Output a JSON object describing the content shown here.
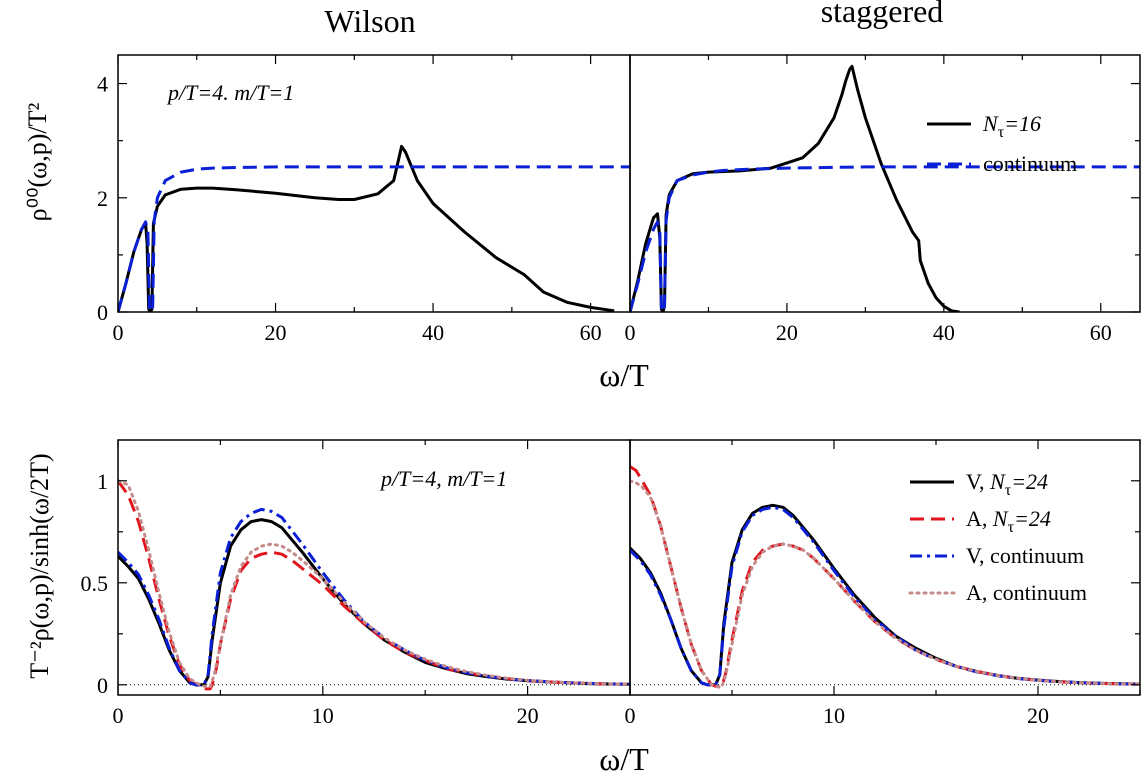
{
  "titles": {
    "left": "Wilson",
    "right": "staggered"
  },
  "chart_data": [
    {
      "type": "line",
      "panel": "top-left",
      "title": "Wilson",
      "xlabel": "ω/T",
      "ylabel": "ρ⁰⁰(ω,p)/T²",
      "xlim": [
        0,
        65
      ],
      "ylim": [
        0,
        4.5
      ],
      "xticks": [
        0,
        20,
        40,
        60
      ],
      "yticks": [
        0,
        2,
        4
      ],
      "annotation": "p/T=4. m/T=1",
      "series": [
        {
          "name": "N_τ=16",
          "color": "#000000",
          "dash": "solid",
          "x": [
            0,
            1,
            2,
            3,
            3.5,
            3.7,
            3.9,
            4.1,
            4.3,
            4.5,
            5,
            6,
            8,
            10,
            12,
            15,
            20,
            25,
            28,
            30,
            33,
            35,
            36,
            36.5,
            38,
            40,
            44,
            48,
            51,
            51.5,
            52,
            54,
            57,
            60,
            62,
            63
          ],
          "y": [
            0,
            0.5,
            1.05,
            1.45,
            1.55,
            1.2,
            0.05,
            0.0,
            0.05,
            1.55,
            1.85,
            2.05,
            2.15,
            2.17,
            2.17,
            2.14,
            2.08,
            2.0,
            1.97,
            1.97,
            2.07,
            2.3,
            2.9,
            2.8,
            2.3,
            1.9,
            1.4,
            0.95,
            0.7,
            0.66,
            0.6,
            0.35,
            0.17,
            0.08,
            0.04,
            0.02
          ]
        },
        {
          "name": "continuum",
          "color": "#0a1fd6",
          "dash": "dashed",
          "x": [
            0,
            1,
            2,
            3,
            3.5,
            3.8,
            4.0,
            4.2,
            4.4,
            4.6,
            5,
            6,
            8,
            10,
            12,
            15,
            20,
            30,
            40,
            50,
            65
          ],
          "y": [
            0,
            0.5,
            1.05,
            1.45,
            1.58,
            1.4,
            0.05,
            0.0,
            0.1,
            1.6,
            2.0,
            2.3,
            2.45,
            2.5,
            2.52,
            2.53,
            2.54,
            2.54,
            2.54,
            2.54,
            2.54
          ]
        }
      ]
    },
    {
      "type": "line",
      "panel": "top-right",
      "title": "staggered",
      "xlabel": "ω/T",
      "xlim": [
        0,
        65
      ],
      "ylim": [
        0,
        4.5
      ],
      "xticks": [
        0,
        20,
        40,
        60
      ],
      "legend": "top-right",
      "series": [
        {
          "name": "N_τ=16",
          "color": "#000000",
          "dash": "solid",
          "x": [
            0,
            1,
            2,
            3,
            3.5,
            3.8,
            4.0,
            4.2,
            4.4,
            4.6,
            5,
            6,
            8,
            10,
            14,
            18,
            22,
            24,
            26,
            27,
            27.5,
            28,
            28.3,
            29,
            30,
            32,
            34,
            36,
            36.8,
            37,
            38,
            39,
            40,
            41,
            42
          ],
          "y": [
            0,
            0.55,
            1.2,
            1.65,
            1.72,
            1.3,
            0.05,
            0.0,
            0.1,
            1.7,
            2.05,
            2.3,
            2.42,
            2.45,
            2.47,
            2.52,
            2.7,
            2.95,
            3.4,
            3.8,
            4.05,
            4.25,
            4.3,
            3.9,
            3.4,
            2.6,
            1.95,
            1.4,
            1.25,
            0.9,
            0.5,
            0.25,
            0.1,
            0.02,
            0
          ]
        },
        {
          "name": "continuum",
          "color": "#0a1fd6",
          "dash": "dashed",
          "x": [
            0,
            1,
            2,
            3,
            3.5,
            3.8,
            4.0,
            4.2,
            4.4,
            4.6,
            5,
            6,
            8,
            10,
            12,
            15,
            20,
            30,
            40,
            50,
            65
          ],
          "y": [
            0,
            0.5,
            1.05,
            1.45,
            1.58,
            1.4,
            0.05,
            0.0,
            0.1,
            1.6,
            2.0,
            2.3,
            2.4,
            2.45,
            2.48,
            2.5,
            2.52,
            2.54,
            2.54,
            2.54,
            2.54
          ]
        }
      ]
    },
    {
      "type": "line",
      "panel": "bottom-left",
      "xlabel": "ω/T",
      "ylabel": "T⁻²ρ(ω,p)/sinh(ω/2T)",
      "xlim": [
        0,
        25
      ],
      "ylim": [
        -0.05,
        1.2
      ],
      "xticks": [
        0,
        10,
        20
      ],
      "yticks": [
        0,
        0.5,
        1
      ],
      "annotation": "p/T=4, m/T=1",
      "zero_line": true,
      "series": [
        {
          "name": "V, N_τ=24",
          "color": "#000000",
          "dash": "solid",
          "x": [
            0,
            0.5,
            1,
            1.5,
            2,
            2.5,
            3,
            3.5,
            3.8,
            4.0,
            4.2,
            4.4,
            4.6,
            5,
            5.5,
            6,
            6.5,
            7,
            7.5,
            8,
            9,
            10,
            11,
            12,
            13,
            14,
            15,
            16,
            17,
            18,
            19,
            20,
            21,
            22,
            23,
            24,
            25
          ],
          "y": [
            0.63,
            0.58,
            0.52,
            0.42,
            0.3,
            0.17,
            0.07,
            0.01,
            0.0,
            0.0,
            0.0,
            0.04,
            0.22,
            0.5,
            0.68,
            0.76,
            0.8,
            0.81,
            0.8,
            0.77,
            0.65,
            0.52,
            0.4,
            0.3,
            0.22,
            0.16,
            0.11,
            0.08,
            0.055,
            0.04,
            0.028,
            0.02,
            0.014,
            0.01,
            0.006,
            0.004,
            0.003
          ]
        },
        {
          "name": "A, N_τ=24",
          "color": "#e0151d",
          "dash": "dashed",
          "x": [
            0,
            0.5,
            1,
            1.5,
            2,
            2.5,
            3,
            3.5,
            4,
            4.3,
            4.5,
            4.6,
            4.8,
            5,
            5.5,
            6,
            6.5,
            7,
            7.5,
            8,
            8.5,
            9,
            10,
            11,
            12,
            13,
            14,
            15,
            16,
            17,
            18,
            19,
            20,
            21,
            22,
            23,
            24,
            25
          ],
          "y": [
            1.0,
            0.93,
            0.8,
            0.62,
            0.42,
            0.24,
            0.1,
            0.02,
            -0.01,
            -0.02,
            -0.02,
            0.0,
            0.08,
            0.2,
            0.42,
            0.56,
            0.62,
            0.64,
            0.65,
            0.64,
            0.61,
            0.57,
            0.49,
            0.39,
            0.3,
            0.22,
            0.16,
            0.12,
            0.08,
            0.06,
            0.043,
            0.03,
            0.02,
            0.014,
            0.01,
            0.007,
            0.004,
            0.003
          ]
        },
        {
          "name": "V, continuum",
          "color": "#0a1fd6",
          "dash": "dashdot",
          "x": [
            0,
            0.5,
            1,
            1.5,
            2,
            2.5,
            3,
            3.5,
            3.8,
            4.0,
            4.2,
            4.4,
            4.6,
            5,
            5.5,
            6,
            6.5,
            7,
            7.5,
            8,
            9,
            10,
            11,
            12,
            13,
            14,
            15,
            16,
            17,
            18,
            19,
            20,
            21,
            22,
            23,
            24,
            25
          ],
          "y": [
            0.65,
            0.6,
            0.54,
            0.44,
            0.32,
            0.18,
            0.07,
            0.01,
            0.0,
            0.0,
            0.0,
            0.05,
            0.25,
            0.55,
            0.72,
            0.8,
            0.84,
            0.86,
            0.85,
            0.82,
            0.69,
            0.55,
            0.42,
            0.31,
            0.23,
            0.17,
            0.12,
            0.085,
            0.06,
            0.042,
            0.03,
            0.021,
            0.015,
            0.01,
            0.007,
            0.005,
            0.003
          ]
        },
        {
          "name": "A, continuum",
          "color": "#c48a8a",
          "dash": "dotted",
          "x": [
            0,
            0.5,
            1,
            1.5,
            2,
            2.5,
            3,
            3.5,
            4,
            4.3,
            4.5,
            4.7,
            5,
            5.5,
            6,
            6.5,
            7,
            7.5,
            8,
            8.5,
            9,
            10,
            11,
            12,
            13,
            14,
            15,
            16,
            17,
            18,
            19,
            20,
            21,
            22,
            23,
            24,
            25
          ],
          "y": [
            1.0,
            0.98,
            0.85,
            0.66,
            0.45,
            0.26,
            0.11,
            0.03,
            0.0,
            -0.01,
            -0.01,
            0.05,
            0.2,
            0.44,
            0.58,
            0.65,
            0.68,
            0.69,
            0.68,
            0.65,
            0.61,
            0.52,
            0.41,
            0.31,
            0.23,
            0.17,
            0.125,
            0.09,
            0.065,
            0.046,
            0.032,
            0.022,
            0.015,
            0.01,
            0.007,
            0.005,
            0.003
          ]
        }
      ]
    },
    {
      "type": "line",
      "panel": "bottom-right",
      "xlabel": "ω/T",
      "xlim": [
        0,
        25
      ],
      "ylim": [
        -0.05,
        1.2
      ],
      "xticks": [
        0,
        10,
        20
      ],
      "legend": "top-right",
      "zero_line": true,
      "series": [
        {
          "name": "V, N_τ=24",
          "color": "#000000",
          "dash": "solid",
          "x": [
            0,
            0.5,
            1,
            1.5,
            2,
            2.5,
            3,
            3.5,
            3.8,
            4.0,
            4.2,
            4.4,
            4.6,
            5,
            5.5,
            6,
            6.5,
            7,
            7.5,
            8,
            9,
            10,
            11,
            12,
            13,
            14,
            15,
            16,
            17,
            18,
            19,
            20,
            21,
            22,
            23,
            24,
            25
          ],
          "y": [
            0.67,
            0.62,
            0.55,
            0.45,
            0.32,
            0.18,
            0.07,
            0.01,
            0.0,
            0.0,
            0.0,
            0.05,
            0.3,
            0.6,
            0.76,
            0.84,
            0.87,
            0.88,
            0.87,
            0.83,
            0.71,
            0.57,
            0.44,
            0.33,
            0.24,
            0.18,
            0.13,
            0.09,
            0.065,
            0.046,
            0.032,
            0.023,
            0.016,
            0.011,
            0.008,
            0.005,
            0.004
          ]
        },
        {
          "name": "A, N_τ=24",
          "color": "#e0151d",
          "dash": "dashed",
          "x": [
            0,
            0.3,
            0.6,
            1,
            1.5,
            2,
            2.5,
            3,
            3.5,
            4,
            4.3,
            4.5,
            4.7,
            5,
            5.5,
            6,
            6.5,
            7,
            7.5,
            8,
            8.5,
            9,
            10,
            11,
            12,
            13,
            14,
            15,
            16,
            17,
            18,
            19,
            20,
            21,
            22,
            23,
            24,
            25
          ],
          "y": [
            1.07,
            1.05,
            1.0,
            0.93,
            0.78,
            0.58,
            0.38,
            0.2,
            0.07,
            0.0,
            -0.01,
            -0.01,
            0.06,
            0.22,
            0.46,
            0.6,
            0.66,
            0.68,
            0.69,
            0.68,
            0.66,
            0.62,
            0.52,
            0.41,
            0.31,
            0.23,
            0.17,
            0.125,
            0.09,
            0.065,
            0.046,
            0.032,
            0.022,
            0.015,
            0.01,
            0.007,
            0.005,
            0.003
          ]
        },
        {
          "name": "V, continuum",
          "color": "#0a1fd6",
          "dash": "dashdot",
          "x": [
            0,
            0.5,
            1,
            1.5,
            2,
            2.5,
            3,
            3.5,
            3.8,
            4.0,
            4.2,
            4.4,
            4.6,
            5,
            5.5,
            6,
            6.5,
            7,
            7.5,
            8,
            9,
            10,
            11,
            12,
            13,
            14,
            15,
            16,
            17,
            18,
            19,
            20,
            21,
            22,
            23,
            24,
            25
          ],
          "y": [
            0.66,
            0.61,
            0.54,
            0.44,
            0.32,
            0.18,
            0.07,
            0.01,
            0.0,
            0.0,
            0.0,
            0.05,
            0.28,
            0.58,
            0.75,
            0.83,
            0.86,
            0.87,
            0.86,
            0.82,
            0.7,
            0.56,
            0.43,
            0.32,
            0.24,
            0.17,
            0.125,
            0.09,
            0.063,
            0.045,
            0.031,
            0.022,
            0.015,
            0.011,
            0.007,
            0.005,
            0.003
          ]
        },
        {
          "name": "A, continuum",
          "color": "#c48a8a",
          "dash": "dotted",
          "x": [
            0,
            0.3,
            0.6,
            1,
            1.5,
            2,
            2.5,
            3,
            3.5,
            4,
            4.3,
            4.5,
            4.7,
            5,
            5.5,
            6,
            6.5,
            7,
            7.5,
            8,
            8.5,
            9,
            10,
            11,
            12,
            13,
            14,
            15,
            16,
            17,
            18,
            19,
            20,
            21,
            22,
            23,
            24,
            25
          ],
          "y": [
            1.0,
            0.99,
            0.97,
            0.92,
            0.78,
            0.58,
            0.38,
            0.2,
            0.07,
            0.0,
            -0.01,
            -0.01,
            0.05,
            0.2,
            0.44,
            0.58,
            0.65,
            0.68,
            0.69,
            0.68,
            0.66,
            0.62,
            0.52,
            0.41,
            0.31,
            0.23,
            0.17,
            0.125,
            0.09,
            0.065,
            0.046,
            0.032,
            0.022,
            0.015,
            0.01,
            0.007,
            0.005,
            0.003
          ]
        }
      ]
    }
  ],
  "legends": {
    "top": [
      {
        "prefix": "",
        "var": "N",
        "sub": "τ",
        "suffix": "=16",
        "color": "#000000",
        "dash": "solid"
      },
      {
        "prefix": "continuum",
        "var": "",
        "sub": "",
        "suffix": "",
        "color": "#0a1fd6",
        "dash": "dashed"
      }
    ],
    "bottom": [
      {
        "prefix": "V, ",
        "var": "N",
        "sub": "τ",
        "suffix": "=24",
        "color": "#000000",
        "dash": "solid"
      },
      {
        "prefix": "A, ",
        "var": "N",
        "sub": "τ",
        "suffix": "=24",
        "color": "#e0151d",
        "dash": "dashed"
      },
      {
        "prefix": "V, continuum",
        "var": "",
        "sub": "",
        "suffix": "",
        "color": "#0a1fd6",
        "dash": "dashdot"
      },
      {
        "prefix": "A, continuum",
        "var": "",
        "sub": "",
        "suffix": "",
        "color": "#c48a8a",
        "dash": "dotted"
      }
    ]
  }
}
